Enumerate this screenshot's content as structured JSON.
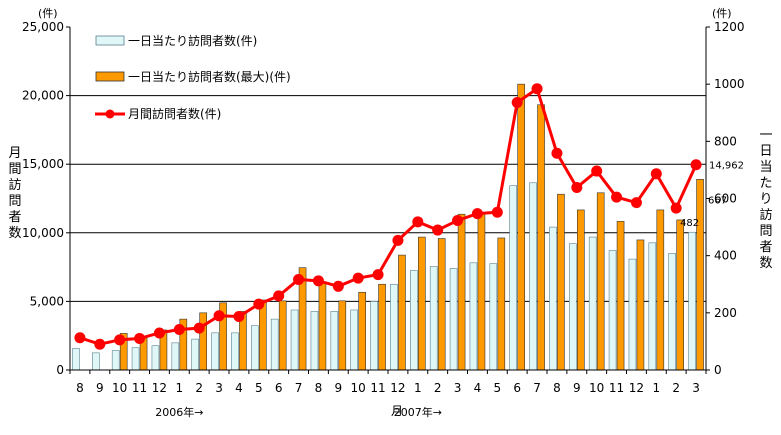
{
  "chart_data": {
    "type": "bar+line",
    "left_unit": "(件)",
    "right_unit": "(件)",
    "left_ylabel": "月間訪問者数",
    "right_ylabel": "一日当たり訪問者数",
    "xlabel": "月",
    "year_labels": [
      {
        "label": "2006年→",
        "at_index": 5
      },
      {
        "label": "2007年→",
        "at_index": 17
      }
    ],
    "left_ylim": [
      0,
      25000
    ],
    "left_ticks": [
      "0",
      "5,000",
      "10,000",
      "15,000",
      "20,000",
      "25,000"
    ],
    "left_tick_values": [
      0,
      5000,
      10000,
      15000,
      20000,
      25000
    ],
    "right_ylim": [
      0,
      1200
    ],
    "right_ticks": [
      "0",
      "200",
      "400",
      "600",
      "800",
      "1000",
      "1200"
    ],
    "right_tick_values": [
      0,
      200,
      400,
      600,
      800,
      1000,
      1200
    ],
    "gridlines_left": [
      5000,
      10000,
      15000,
      20000
    ],
    "categories": [
      "8",
      "9",
      "10",
      "11",
      "12",
      "1",
      "2",
      "3",
      "4",
      "5",
      "6",
      "7",
      "8",
      "9",
      "10",
      "11",
      "12",
      "1",
      "2",
      "3",
      "4",
      "5",
      "6",
      "7",
      "8",
      "9",
      "10",
      "11",
      "12",
      "1",
      "2",
      "3"
    ],
    "legend_position": "top-left",
    "series": [
      {
        "name": "一日当たり訪問者数(件)",
        "axis": "right",
        "kind": "bar",
        "color": "#dff7f7",
        "values": [
          75,
          60,
          68,
          78,
          85,
          95,
          108,
          130,
          130,
          155,
          178,
          210,
          205,
          205,
          210,
          240,
          300,
          348,
          362,
          355,
          375,
          372,
          645,
          655,
          500,
          442,
          465,
          418,
          388,
          445,
          408,
          482
        ]
      },
      {
        "name": "一日当たり訪問者数(最大)(件)",
        "axis": "right",
        "kind": "bar",
        "color": "#ff9900",
        "values": [
          0,
          0,
          128,
          112,
          140,
          178,
          200,
          235,
          205,
          245,
          242,
          358,
          305,
          242,
          272,
          300,
          402,
          465,
          460,
          545,
          545,
          462,
          1000,
          928,
          615,
          560,
          620,
          520,
          455,
          560,
          525,
          667
        ]
      },
      {
        "name": "月間訪問者数(件)",
        "axis": "left",
        "kind": "line",
        "color": "#ff0000",
        "values": [
          2350,
          1880,
          2200,
          2300,
          2700,
          2950,
          3050,
          3950,
          3900,
          4800,
          5400,
          6600,
          6500,
          6100,
          6700,
          6950,
          9450,
          10800,
          10200,
          10900,
          11400,
          11500,
          19500,
          20500,
          15800,
          13300,
          14500,
          12600,
          12200,
          14300,
          11800,
          14962
        ]
      }
    ],
    "annotations": [
      "14,962",
      "667",
      "482"
    ]
  }
}
